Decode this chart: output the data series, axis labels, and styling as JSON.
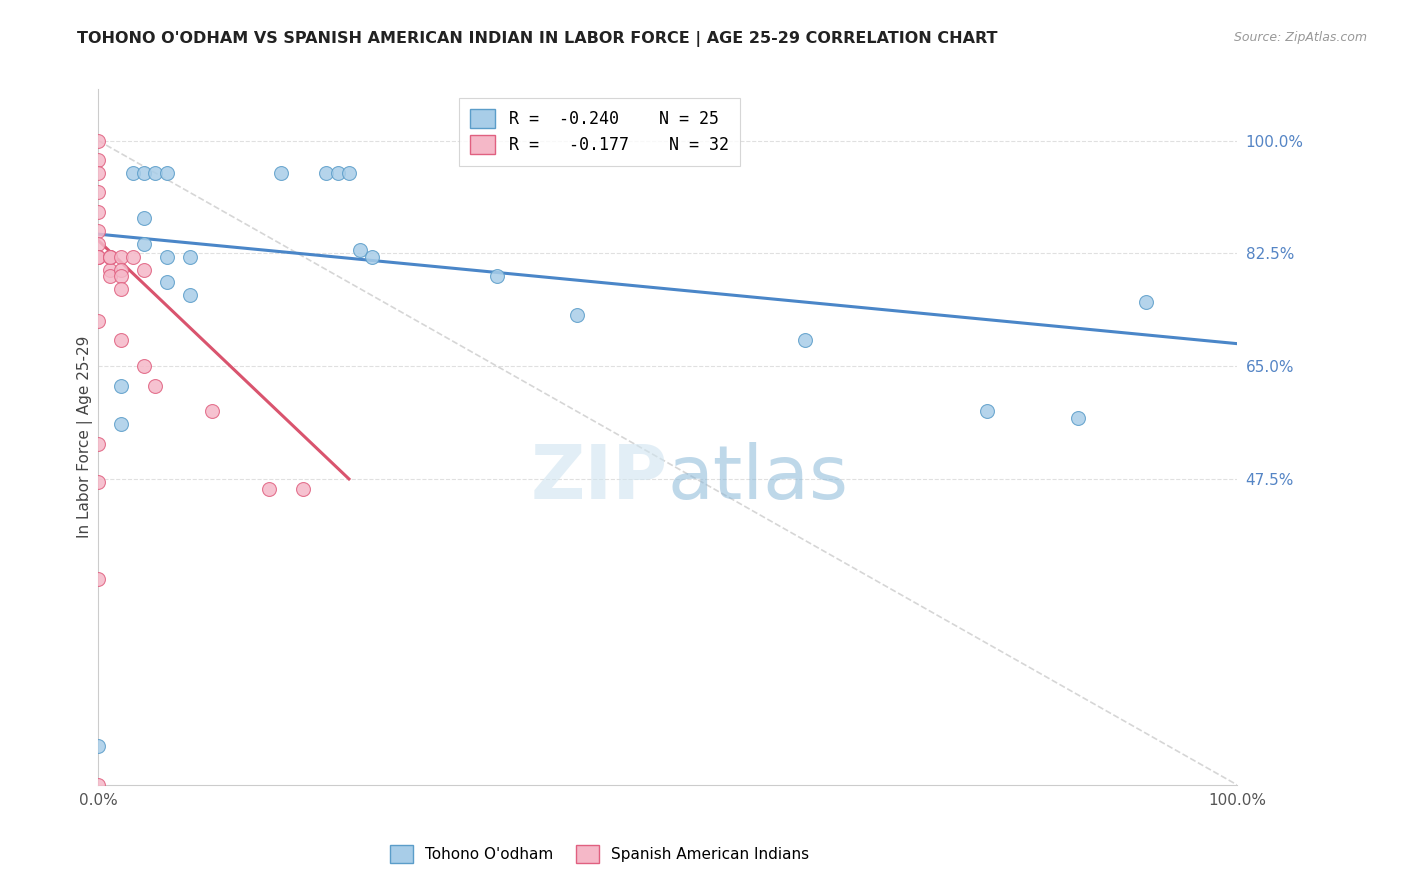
{
  "title": "TOHONO O'ODHAM VS SPANISH AMERICAN INDIAN IN LABOR FORCE | AGE 25-29 CORRELATION CHART",
  "source": "Source: ZipAtlas.com",
  "ylabel": "In Labor Force | Age 25-29",
  "xlim": [
    0.0,
    1.0
  ],
  "ylim": [
    0.0,
    1.08
  ],
  "xtick_positions": [
    0.0,
    0.1,
    0.2,
    0.3,
    0.4,
    0.5,
    0.6,
    0.7,
    0.8,
    0.9,
    1.0
  ],
  "xticklabels": [
    "0.0%",
    "",
    "",
    "",
    "",
    "",
    "",
    "",
    "",
    "",
    "100.0%"
  ],
  "ytick_positions": [
    0.475,
    0.65,
    0.825,
    1.0
  ],
  "ytick_labels": [
    "47.5%",
    "65.0%",
    "82.5%",
    "100.0%"
  ],
  "legend_blue_r": "-0.240",
  "legend_blue_n": "25",
  "legend_pink_r": "-0.177",
  "legend_pink_n": "32",
  "blue_fill": "#a8cde8",
  "blue_edge": "#5b9dc9",
  "pink_fill": "#f5b8c8",
  "pink_edge": "#e06080",
  "blue_line_color": "#4a86c8",
  "pink_line_color": "#d9546e",
  "diag_color": "#cccccc",
  "grid_color": "#e0e0e0",
  "watermark_color": "#d0e4f0",
  "watermark_alpha": 0.6,
  "blue_scatter_x": [
    0.0,
    0.02,
    0.02,
    0.03,
    0.04,
    0.04,
    0.04,
    0.05,
    0.06,
    0.06,
    0.06,
    0.08,
    0.08,
    0.16,
    0.2,
    0.21,
    0.22,
    0.23,
    0.24,
    0.35,
    0.42,
    0.62,
    0.78,
    0.92,
    0.86
  ],
  "blue_scatter_y": [
    0.06,
    0.62,
    0.56,
    0.95,
    0.95,
    0.88,
    0.84,
    0.95,
    0.95,
    0.82,
    0.78,
    0.82,
    0.76,
    0.95,
    0.95,
    0.95,
    0.95,
    0.83,
    0.82,
    0.79,
    0.73,
    0.69,
    0.58,
    0.75,
    0.57
  ],
  "pink_scatter_x": [
    0.0,
    0.0,
    0.0,
    0.0,
    0.0,
    0.0,
    0.0,
    0.0,
    0.0,
    0.0,
    0.0,
    0.0,
    0.01,
    0.01,
    0.01,
    0.01,
    0.01,
    0.02,
    0.02,
    0.02,
    0.02,
    0.02,
    0.03,
    0.04,
    0.04,
    0.05,
    0.1,
    0.15,
    0.18,
    0.0,
    0.0,
    0.0
  ],
  "pink_scatter_y": [
    1.0,
    0.97,
    0.95,
    0.92,
    0.89,
    0.86,
    0.84,
    0.82,
    0.82,
    0.82,
    0.53,
    0.47,
    0.82,
    0.82,
    0.8,
    0.79,
    0.82,
    0.82,
    0.8,
    0.79,
    0.77,
    0.69,
    0.82,
    0.8,
    0.65,
    0.62,
    0.58,
    0.46,
    0.46,
    0.72,
    0.32,
    0.0
  ],
  "blue_trend_x": [
    0.0,
    1.0
  ],
  "blue_trend_y": [
    0.855,
    0.685
  ],
  "pink_trend_x": [
    0.0,
    0.22
  ],
  "pink_trend_y": [
    0.845,
    0.475
  ],
  "diag_line_x": [
    0.0,
    1.0
  ],
  "diag_line_y": [
    1.0,
    0.0
  ]
}
